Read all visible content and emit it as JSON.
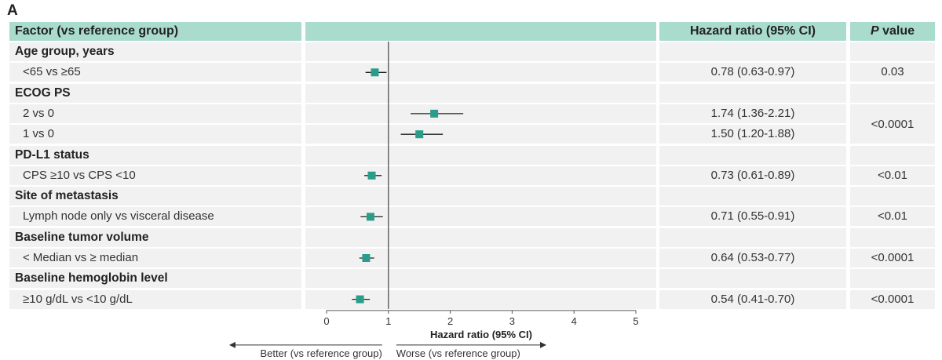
{
  "panel_label": "A",
  "headers": {
    "factor": "Factor (vs reference group)",
    "hazard_ratio": "Hazard ratio (95% CI)",
    "p_value_italic": "P",
    "p_value_rest": " value"
  },
  "rows": [
    {
      "type": "category",
      "label": "Age group, years"
    },
    {
      "type": "item",
      "label": "<65 vs ≥65",
      "hr_text": "0.78 (0.63-0.97)",
      "p": "0.03"
    },
    {
      "type": "category",
      "label": "ECOG PS"
    },
    {
      "type": "item",
      "label": "2 vs 0",
      "hr_text": "1.74 (1.36-2.21)"
    },
    {
      "type": "item",
      "label": "1 vs 0",
      "hr_text": "1.50 (1.20-1.88)"
    },
    {
      "type": "category",
      "label": "PD-L1 status"
    },
    {
      "type": "item",
      "label": "CPS ≥10 vs CPS <10",
      "hr_text": "0.73 (0.61-0.89)",
      "p": "<0.01"
    },
    {
      "type": "category",
      "label": "Site of metastasis"
    },
    {
      "type": "item",
      "label": "Lymph node only vs visceral disease",
      "hr_text": "0.71 (0.55-0.91)",
      "p": "<0.01"
    },
    {
      "type": "category",
      "label": "Baseline tumor volume"
    },
    {
      "type": "item",
      "label": "< Median vs ≥ median",
      "hr_text": "0.64 (0.53-0.77)",
      "p": "<0.0001"
    },
    {
      "type": "category",
      "label": "Baseline hemoglobin level"
    },
    {
      "type": "item",
      "label": "≥10 g/dL vs <10 g/dL",
      "hr_text": "0.54 (0.41-0.70)",
      "p": "<0.0001"
    }
  ],
  "ecog_merged_p": "<0.0001",
  "chart_data": {
    "type": "forest",
    "xlabel": "Hazard ratio (95% CI)",
    "xlim": [
      0,
      5
    ],
    "xticks": [
      0,
      1,
      2,
      3,
      4,
      5
    ],
    "reference_line": 1,
    "marker_color": "#2a9d8a",
    "series": [
      {
        "label": "<65 vs ≥65",
        "hr": 0.78,
        "lo": 0.63,
        "hi": 0.97
      },
      {
        "label": "2 vs 0",
        "hr": 1.74,
        "lo": 1.36,
        "hi": 2.21
      },
      {
        "label": "1 vs 0",
        "hr": 1.5,
        "lo": 1.2,
        "hi": 1.88
      },
      {
        "label": "CPS ≥10 vs CPS <10",
        "hr": 0.73,
        "lo": 0.61,
        "hi": 0.89
      },
      {
        "label": "Lymph node only vs visceral disease",
        "hr": 0.71,
        "lo": 0.55,
        "hi": 0.91
      },
      {
        "label": "< Median vs ≥ median",
        "hr": 0.64,
        "lo": 0.53,
        "hi": 0.77
      },
      {
        "label": "≥10 g/dL vs <10 g/dL",
        "hr": 0.54,
        "lo": 0.41,
        "hi": 0.7
      }
    ],
    "better_label": "Better (vs reference group)",
    "worse_label": "Worse (vs reference group)"
  },
  "colors": {
    "header_bg": "#a9dccd",
    "row_bg": "#f1f1f1",
    "marker": "#2a9d8a"
  }
}
